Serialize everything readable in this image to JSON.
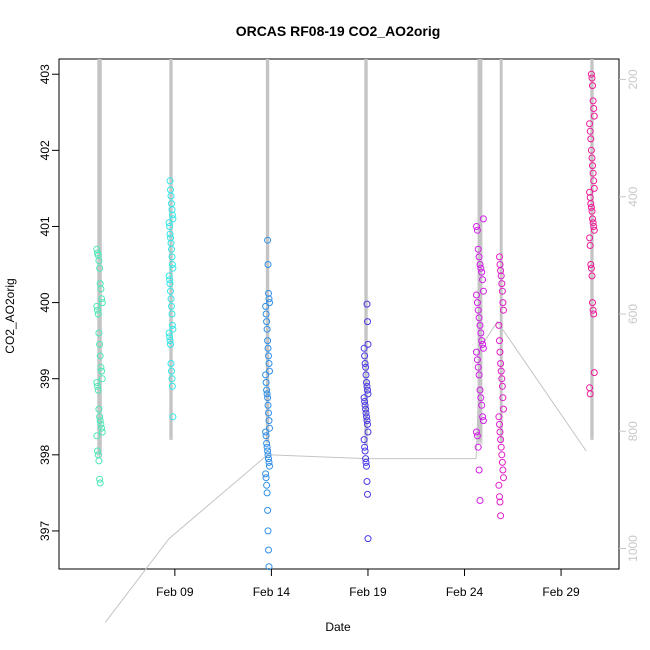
{
  "chart_data": {
    "type": "scatter",
    "title": "ORCAS RF08-19 CO2_AO2orig",
    "xlabel": "Date",
    "ylabel": "CO2_AO2orig",
    "x_ticks": [
      "Feb 09",
      "Feb 14",
      "Feb 19",
      "Feb 24",
      "Feb 29"
    ],
    "y_ticks": [
      397,
      398,
      399,
      400,
      401,
      402,
      403
    ],
    "y_right_ticks": [
      200,
      400,
      600,
      800,
      1000
    ],
    "ylim": [
      396.5,
      403.2
    ],
    "y_right_lim": [
      165,
      1035
    ],
    "right_axis_direction": "reversed",
    "grid": false,
    "series": [
      {
        "color": "#4EE8B8",
        "x_day": 5.1,
        "x_spread": 0.35,
        "values": [
          400.7,
          400.65,
          400.62,
          400.55,
          400.45,
          400.25,
          400.18,
          400.05,
          400.0,
          399.95,
          399.9,
          399.85,
          399.6,
          399.45,
          399.3,
          399.15,
          399.1,
          399.0,
          398.95,
          398.9,
          398.85,
          398.6,
          398.5,
          398.45,
          398.4,
          398.35,
          398.3,
          398.25,
          398.05,
          398.0,
          397.92,
          397.68,
          397.63
        ]
      },
      {
        "color": "#33E8E8",
        "x_day": 8.8,
        "x_spread": 0.25,
        "values": [
          401.6,
          401.48,
          401.4,
          401.3,
          401.22,
          401.15,
          401.1,
          401.05,
          401.0,
          400.9,
          400.85,
          400.78,
          400.7,
          400.6,
          400.5,
          400.45,
          400.35,
          400.3,
          400.25,
          400.15,
          400.05,
          399.95,
          399.85,
          399.7,
          399.65,
          399.6,
          399.55,
          399.5,
          399.45,
          399.2,
          399.1,
          399.0,
          398.9,
          398.5
        ]
      },
      {
        "color": "#2F8FE8",
        "x_day": 13.8,
        "x_spread": 0.25,
        "values": [
          400.82,
          400.5,
          400.12,
          400.05,
          400.0,
          399.95,
          399.85,
          399.75,
          399.65,
          399.5,
          399.4,
          399.3,
          399.2,
          399.1,
          399.05,
          398.95,
          398.85,
          398.8,
          398.75,
          398.65,
          398.55,
          398.45,
          398.35,
          398.3,
          398.25,
          398.15,
          398.1,
          398.05,
          398.0,
          397.95,
          397.9,
          397.85,
          397.75,
          397.7,
          397.6,
          397.5,
          397.27,
          397.0,
          396.75,
          396.53
        ]
      },
      {
        "color": "#4A3AE8",
        "x_day": 18.9,
        "x_spread": 0.25,
        "values": [
          399.98,
          399.75,
          399.45,
          399.4,
          399.3,
          399.2,
          399.15,
          399.05,
          398.95,
          398.9,
          398.85,
          398.8,
          398.75,
          398.7,
          398.65,
          398.6,
          398.55,
          398.5,
          398.45,
          398.4,
          398.3,
          398.2,
          398.1,
          398.05,
          397.95,
          397.9,
          397.85,
          397.65,
          397.48,
          396.9
        ]
      },
      {
        "color": "#D21EE8",
        "x_day": 24.8,
        "x_spread": 0.45,
        "values": [
          401.1,
          401.0,
          400.95,
          400.7,
          400.6,
          400.5,
          400.45,
          400.4,
          400.3,
          400.15,
          400.1,
          400.0,
          399.9,
          399.8,
          399.7,
          399.6,
          399.5,
          399.45,
          399.4,
          399.35,
          399.25,
          399.15,
          399.05,
          398.85,
          398.75,
          398.65,
          398.5,
          398.45,
          398.3,
          398.25,
          398.1,
          397.8,
          397.4
        ]
      },
      {
        "color": "#E01EC8",
        "x_day": 25.9,
        "x_spread": 0.3,
        "values": [
          400.6,
          400.5,
          400.42,
          400.35,
          400.25,
          400.15,
          400.0,
          399.9,
          399.7,
          399.5,
          399.35,
          399.2,
          399.1,
          399.0,
          398.9,
          398.75,
          398.6,
          398.5,
          398.4,
          398.3,
          398.2,
          398.1,
          398.0,
          397.9,
          397.8,
          397.7,
          397.6,
          397.45,
          397.38,
          397.2
        ]
      },
      {
        "color": "#F01A9A",
        "x_day": 30.6,
        "x_spread": 0.3,
        "values": [
          403.0,
          402.95,
          402.85,
          402.65,
          402.55,
          402.45,
          402.35,
          402.25,
          402.15,
          402.0,
          401.9,
          401.8,
          401.7,
          401.6,
          401.5,
          401.45,
          401.38,
          401.3,
          401.25,
          401.2,
          401.1,
          401.05,
          401.0,
          400.95,
          400.85,
          400.75,
          400.5,
          400.45,
          400.35,
          400.0,
          399.9,
          399.85,
          399.08,
          398.88,
          398.8
        ]
      }
    ]
  }
}
